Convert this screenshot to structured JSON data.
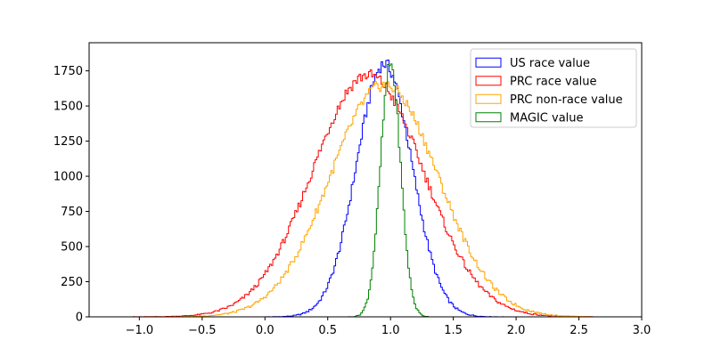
{
  "chart_data": {
    "type": "histogram",
    "title": "",
    "xlabel": "",
    "ylabel": "",
    "xlim": [
      -1.4,
      3.0
    ],
    "ylim": [
      0,
      1950
    ],
    "x_ticks": [
      -1.0,
      -0.5,
      0.0,
      0.5,
      1.0,
      1.5,
      2.0,
      2.5,
      3.0
    ],
    "x_tick_labels": [
      "−1.0",
      "−0.5",
      "0.0",
      "0.5",
      "1.0",
      "1.5",
      "2.0",
      "2.5",
      "3.0"
    ],
    "y_ticks": [
      0,
      250,
      500,
      750,
      1000,
      1250,
      1500,
      1750
    ],
    "y_tick_labels": [
      "0",
      "250",
      "500",
      "750",
      "1000",
      "1250",
      "1500",
      "1750"
    ],
    "grid": false,
    "legend_position": "top-right",
    "series": [
      {
        "name": "US race value",
        "color": "#0000ff",
        "histtype": "step",
        "approx_distribution": {
          "mean": 0.95,
          "std": 0.22,
          "peak_count": 1800,
          "range": [
            0.0,
            1.9
          ]
        }
      },
      {
        "name": "PRC race value",
        "color": "#ff0000",
        "histtype": "step",
        "approx_distribution": {
          "mean": 0.82,
          "std": 0.44,
          "peak_count": 1720,
          "range": [
            -1.1,
            2.6
          ]
        }
      },
      {
        "name": "PRC non-race value",
        "color": "#ffa500",
        "histtype": "step",
        "approx_distribution": {
          "mean": 0.95,
          "std": 0.43,
          "peak_count": 1650,
          "range": [
            -1.0,
            2.6
          ]
        }
      },
      {
        "name": "MAGIC value",
        "color": "#008000",
        "histtype": "step",
        "approx_distribution": {
          "mean": 1.0,
          "std": 0.08,
          "peak_count": 1800,
          "range": [
            0.65,
            1.35
          ]
        }
      }
    ]
  }
}
